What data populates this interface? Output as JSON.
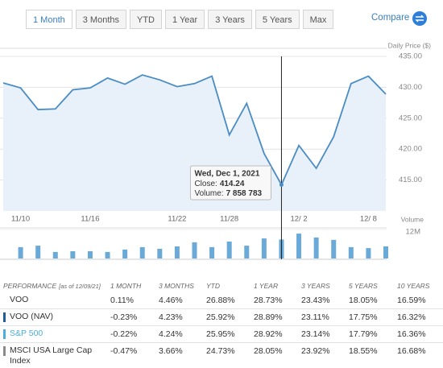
{
  "tabs": [
    "1 Month",
    "3 Months",
    "YTD",
    "1 Year",
    "3 Years",
    "5 Years",
    "Max"
  ],
  "selected_tab": "1 Month",
  "compare": "Compare",
  "chart_data": [
    {
      "type": "line",
      "y_axis_label": "Daily Price ($)",
      "color": "#4a8cc4",
      "area_color": "#e8f1f9",
      "categories": [
        null,
        "11/10",
        null,
        null,
        null,
        "11/16",
        null,
        null,
        null,
        null,
        "11/22",
        null,
        null,
        "11/28",
        null,
        null,
        null,
        "12/ 2",
        null,
        null,
        null,
        "12/ 8",
        null
      ],
      "values": [
        430.7,
        429.9,
        426.4,
        426.5,
        429.6,
        429.9,
        431.5,
        430.5,
        432.0,
        431.2,
        430.1,
        430.6,
        431.8,
        422.3,
        427.4,
        419.3,
        414.24,
        420.6,
        416.9,
        422.0,
        430.6,
        431.8,
        428.9
      ],
      "ylim": [
        410,
        435
      ],
      "yticks": [
        {
          "value": 415,
          "label": "415.00"
        },
        {
          "value": 420,
          "label": "420.00"
        },
        {
          "value": 425,
          "label": "425.00"
        },
        {
          "value": 430,
          "label": "430.00"
        },
        {
          "value": 435,
          "label": "435.00"
        }
      ],
      "grid": true
    },
    {
      "type": "bar",
      "y_axis_label": "Volume",
      "color": "#6aaad8",
      "values": [
        null,
        4700000,
        5300000,
        2700000,
        3000000,
        3000000,
        2700000,
        3700000,
        4700000,
        4000000,
        5000000,
        6700000,
        4700000,
        7000000,
        5300000,
        8300000,
        7858783,
        10300000,
        8700000,
        7700000,
        4700000,
        4300000,
        5000000
      ],
      "ylim": [
        0,
        12000000
      ],
      "yticks": [
        {
          "value": 12000000,
          "label": "12M"
        }
      ]
    }
  ],
  "tooltip": {
    "date": "Wed, Dec 1, 2021",
    "close_label": "Close:",
    "close": 414.24,
    "volume_label": "Volume:",
    "volume": {
      "value": 7858783,
      "label": "7 858 783"
    }
  },
  "performance": {
    "title": "PERFORMANCE",
    "as_of": "[as of 12/09/21]",
    "columns": [
      "1 MONTH",
      "3 MONTHS",
      "YTD",
      "1 YEAR",
      "3 YEARS",
      "5 YEARS",
      "10 YEARS"
    ],
    "rows": [
      {
        "name": "VOO",
        "values": [
          "0.11%",
          "4.46%",
          "26.88%",
          "28.73%",
          "23.43%",
          "18.05%",
          "16.59%"
        ]
      },
      {
        "name": "VOO (NAV)",
        "color": "#1f5f96",
        "values": [
          "-0.23%",
          "4.23%",
          "25.92%",
          "28.89%",
          "23.11%",
          "17.75%",
          "16.32%"
        ]
      },
      {
        "name": "S&P 500",
        "color": "#4aaee0",
        "link": true,
        "values": [
          "-0.22%",
          "4.24%",
          "25.95%",
          "28.92%",
          "23.14%",
          "17.79%",
          "16.36%"
        ]
      },
      {
        "name": "MSCI USA Large Cap Index",
        "color": "#8a8a8a",
        "values": [
          "-0.47%",
          "3.66%",
          "24.73%",
          "28.05%",
          "23.92%",
          "18.55%",
          "16.68%"
        ]
      }
    ]
  }
}
